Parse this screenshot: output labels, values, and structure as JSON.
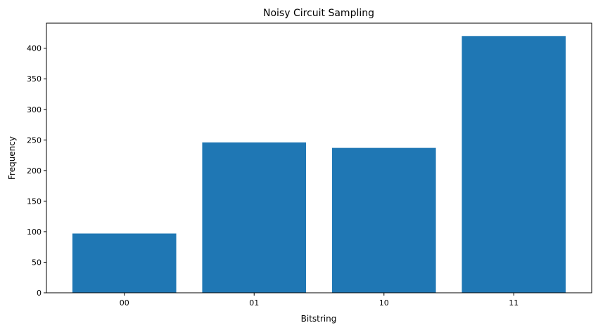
{
  "chart_data": {
    "type": "bar",
    "title": "Noisy Circuit Sampling",
    "xlabel": "Bitstring",
    "ylabel": "Frequency",
    "categories": [
      "00",
      "01",
      "10",
      "11"
    ],
    "values": [
      97,
      246,
      237,
      420
    ],
    "ylim": [
      0,
      441
    ],
    "yticks": [
      0,
      50,
      100,
      150,
      200,
      250,
      300,
      350,
      400
    ],
    "grid": false,
    "bar_color": "#1f77b4"
  }
}
